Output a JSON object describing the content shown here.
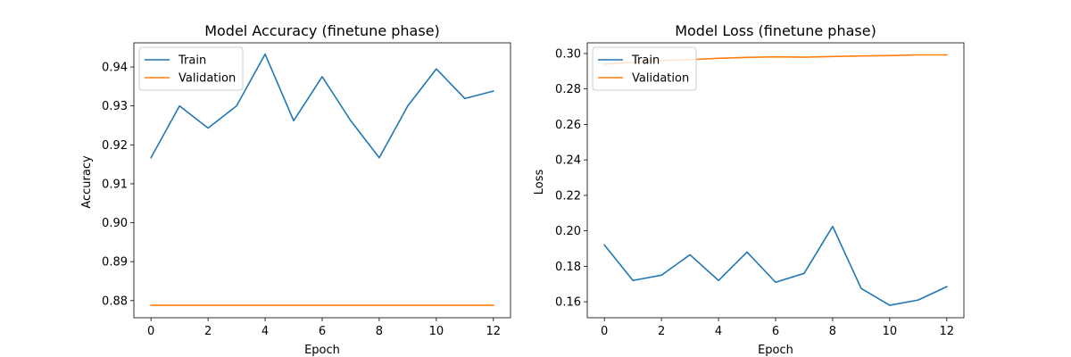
{
  "chart_data": [
    {
      "type": "line",
      "title": "Model Accuracy (finetune phase)",
      "xlabel": "Epoch",
      "ylabel": "Accuracy",
      "xlim": [
        -0.6,
        12.6
      ],
      "ylim": [
        0.8756,
        0.9462
      ],
      "xticks": [
        0,
        2,
        4,
        6,
        8,
        10,
        12
      ],
      "yticks": [
        0.88,
        0.89,
        0.9,
        0.91,
        0.92,
        0.93,
        0.94
      ],
      "ytick_labels": [
        "0.88",
        "0.89",
        "0.90",
        "0.91",
        "0.92",
        "0.93",
        "0.94"
      ],
      "legend": "upper left",
      "x": [
        0,
        1,
        2,
        3,
        4,
        5,
        6,
        7,
        8,
        9,
        10,
        11,
        12
      ],
      "series": [
        {
          "name": "Train",
          "color": "#1f77b4",
          "values": [
            0.9167,
            0.93,
            0.9243,
            0.93,
            0.9433,
            0.9262,
            0.9375,
            0.9262,
            0.9167,
            0.93,
            0.9395,
            0.9319,
            0.9338
          ]
        },
        {
          "name": "Validation",
          "color": "#ff7f0e",
          "values": [
            0.8788,
            0.8788,
            0.8788,
            0.8788,
            0.8788,
            0.8788,
            0.8788,
            0.8788,
            0.8788,
            0.8788,
            0.8788,
            0.8788,
            0.8788
          ]
        }
      ]
    },
    {
      "type": "line",
      "title": "Model Loss (finetune phase)",
      "xlabel": "Epoch",
      "ylabel": "Loss",
      "xlim": [
        -0.6,
        12.6
      ],
      "ylim": [
        0.151,
        0.306
      ],
      "xticks": [
        0,
        2,
        4,
        6,
        8,
        10,
        12
      ],
      "yticks": [
        0.16,
        0.18,
        0.2,
        0.22,
        0.24,
        0.26,
        0.28,
        0.3
      ],
      "ytick_labels": [
        "0.16",
        "0.18",
        "0.20",
        "0.22",
        "0.24",
        "0.26",
        "0.28",
        "0.30"
      ],
      "legend": "upper left",
      "x": [
        0,
        1,
        2,
        3,
        4,
        5,
        6,
        7,
        8,
        9,
        10,
        11,
        12
      ],
      "series": [
        {
          "name": "Train",
          "color": "#1f77b4",
          "values": [
            0.192,
            0.172,
            0.175,
            0.1865,
            0.172,
            0.188,
            0.171,
            0.176,
            0.2025,
            0.1675,
            0.158,
            0.161,
            0.1685
          ]
        },
        {
          "name": "Validation",
          "color": "#ff7f0e",
          "values": [
            0.294,
            0.295,
            0.296,
            0.2965,
            0.2973,
            0.2978,
            0.2981,
            0.2979,
            0.2983,
            0.2986,
            0.2988,
            0.2992,
            0.2992
          ]
        }
      ]
    }
  ]
}
